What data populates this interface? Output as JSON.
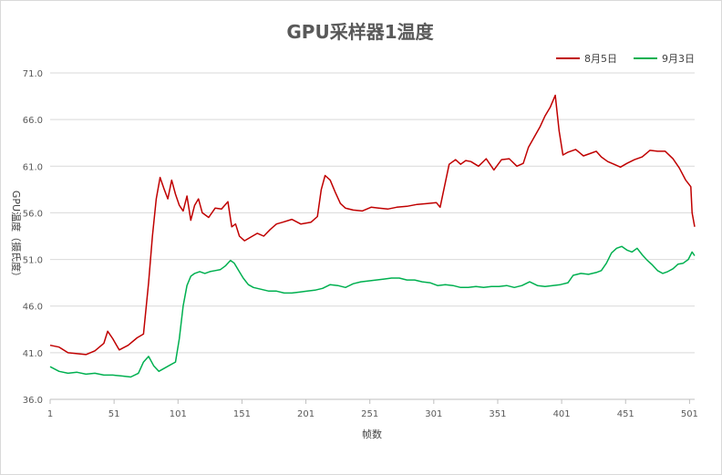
{
  "chart_data": {
    "type": "line",
    "title": "GPU采样器1温度",
    "xlabel": "帧数",
    "ylabel": "GPU温度（摄氏度）",
    "xlim": [
      1,
      505
    ],
    "ylim": [
      36.0,
      71.0
    ],
    "x_ticks": [
      1,
      51,
      101,
      151,
      201,
      251,
      301,
      351,
      401,
      451,
      501
    ],
    "y_ticks": [
      "36.0",
      "41.0",
      "46.0",
      "51.0",
      "56.0",
      "61.0",
      "66.0",
      "71.0"
    ],
    "grid": "horizontal",
    "legend_position": "top-right",
    "series": [
      {
        "name": "8月5日",
        "color": "#c00000",
        "points": [
          [
            1,
            41.8
          ],
          [
            8,
            41.6
          ],
          [
            15,
            41.0
          ],
          [
            22,
            40.9
          ],
          [
            29,
            40.8
          ],
          [
            36,
            41.2
          ],
          [
            43,
            42.0
          ],
          [
            46,
            43.3
          ],
          [
            50,
            42.5
          ],
          [
            55,
            41.3
          ],
          [
            62,
            41.8
          ],
          [
            69,
            42.6
          ],
          [
            74,
            43.0
          ],
          [
            78,
            48.5
          ],
          [
            81,
            53.5
          ],
          [
            84,
            57.5
          ],
          [
            87,
            59.8
          ],
          [
            90,
            58.6
          ],
          [
            93,
            57.5
          ],
          [
            96,
            59.5
          ],
          [
            99,
            58.0
          ],
          [
            102,
            56.8
          ],
          [
            105,
            56.2
          ],
          [
            108,
            57.8
          ],
          [
            111,
            55.2
          ],
          [
            114,
            56.8
          ],
          [
            117,
            57.5
          ],
          [
            120,
            56.0
          ],
          [
            125,
            55.5
          ],
          [
            130,
            56.5
          ],
          [
            135,
            56.4
          ],
          [
            140,
            57.2
          ],
          [
            143,
            54.5
          ],
          [
            146,
            54.8
          ],
          [
            149,
            53.5
          ],
          [
            153,
            53.0
          ],
          [
            158,
            53.4
          ],
          [
            163,
            53.8
          ],
          [
            168,
            53.5
          ],
          [
            173,
            54.2
          ],
          [
            178,
            54.8
          ],
          [
            183,
            55.0
          ],
          [
            190,
            55.3
          ],
          [
            197,
            54.8
          ],
          [
            205,
            55.0
          ],
          [
            210,
            55.6
          ],
          [
            213,
            58.5
          ],
          [
            216,
            60.0
          ],
          [
            220,
            59.5
          ],
          [
            224,
            58.2
          ],
          [
            228,
            57.0
          ],
          [
            232,
            56.5
          ],
          [
            238,
            56.3
          ],
          [
            245,
            56.2
          ],
          [
            252,
            56.6
          ],
          [
            258,
            56.5
          ],
          [
            265,
            56.4
          ],
          [
            272,
            56.6
          ],
          [
            280,
            56.7
          ],
          [
            288,
            56.9
          ],
          [
            296,
            57.0
          ],
          [
            303,
            57.1
          ],
          [
            306,
            56.6
          ],
          [
            309,
            58.6
          ],
          [
            313,
            61.2
          ],
          [
            318,
            61.7
          ],
          [
            322,
            61.2
          ],
          [
            326,
            61.6
          ],
          [
            330,
            61.5
          ],
          [
            336,
            61.0
          ],
          [
            342,
            61.8
          ],
          [
            348,
            60.6
          ],
          [
            354,
            61.7
          ],
          [
            360,
            61.8
          ],
          [
            366,
            61.0
          ],
          [
            371,
            61.3
          ],
          [
            375,
            63.0
          ],
          [
            379,
            64.0
          ],
          [
            384,
            65.2
          ],
          [
            388,
            66.4
          ],
          [
            392,
            67.3
          ],
          [
            396,
            68.6
          ],
          [
            399,
            64.8
          ],
          [
            402,
            62.2
          ],
          [
            406,
            62.5
          ],
          [
            412,
            62.8
          ],
          [
            418,
            62.1
          ],
          [
            424,
            62.4
          ],
          [
            428,
            62.6
          ],
          [
            432,
            62.0
          ],
          [
            437,
            61.5
          ],
          [
            442,
            61.2
          ],
          [
            447,
            60.9
          ],
          [
            452,
            61.3
          ],
          [
            458,
            61.7
          ],
          [
            464,
            62.0
          ],
          [
            470,
            62.7
          ],
          [
            476,
            62.6
          ],
          [
            482,
            62.6
          ],
          [
            488,
            61.8
          ],
          [
            493,
            60.8
          ],
          [
            498,
            59.5
          ],
          [
            502,
            58.8
          ],
          [
            503,
            56.0
          ],
          [
            505,
            54.5
          ]
        ]
      },
      {
        "name": "9月3日",
        "color": "#00b050",
        "points": [
          [
            1,
            39.5
          ],
          [
            8,
            39.0
          ],
          [
            15,
            38.8
          ],
          [
            22,
            38.9
          ],
          [
            29,
            38.7
          ],
          [
            36,
            38.8
          ],
          [
            43,
            38.6
          ],
          [
            50,
            38.6
          ],
          [
            57,
            38.5
          ],
          [
            64,
            38.4
          ],
          [
            70,
            38.8
          ],
          [
            74,
            40.0
          ],
          [
            78,
            40.6
          ],
          [
            82,
            39.6
          ],
          [
            86,
            39.0
          ],
          [
            90,
            39.3
          ],
          [
            95,
            39.7
          ],
          [
            99,
            40.0
          ],
          [
            102,
            42.5
          ],
          [
            105,
            46.0
          ],
          [
            108,
            48.2
          ],
          [
            111,
            49.2
          ],
          [
            114,
            49.5
          ],
          [
            118,
            49.7
          ],
          [
            122,
            49.5
          ],
          [
            126,
            49.7
          ],
          [
            130,
            49.8
          ],
          [
            134,
            49.9
          ],
          [
            138,
            50.3
          ],
          [
            142,
            50.9
          ],
          [
            145,
            50.6
          ],
          [
            148,
            49.9
          ],
          [
            152,
            49.0
          ],
          [
            156,
            48.3
          ],
          [
            160,
            48.0
          ],
          [
            166,
            47.8
          ],
          [
            172,
            47.6
          ],
          [
            178,
            47.6
          ],
          [
            184,
            47.4
          ],
          [
            190,
            47.4
          ],
          [
            196,
            47.5
          ],
          [
            202,
            47.6
          ],
          [
            208,
            47.7
          ],
          [
            214,
            47.9
          ],
          [
            220,
            48.3
          ],
          [
            226,
            48.2
          ],
          [
            232,
            48.0
          ],
          [
            238,
            48.4
          ],
          [
            244,
            48.6
          ],
          [
            250,
            48.7
          ],
          [
            256,
            48.8
          ],
          [
            262,
            48.9
          ],
          [
            268,
            49.0
          ],
          [
            274,
            49.0
          ],
          [
            280,
            48.8
          ],
          [
            286,
            48.8
          ],
          [
            292,
            48.6
          ],
          [
            298,
            48.5
          ],
          [
            304,
            48.2
          ],
          [
            310,
            48.3
          ],
          [
            316,
            48.2
          ],
          [
            322,
            48.0
          ],
          [
            328,
            48.0
          ],
          [
            334,
            48.1
          ],
          [
            340,
            48.0
          ],
          [
            346,
            48.1
          ],
          [
            352,
            48.1
          ],
          [
            358,
            48.2
          ],
          [
            364,
            48.0
          ],
          [
            370,
            48.2
          ],
          [
            376,
            48.6
          ],
          [
            382,
            48.2
          ],
          [
            388,
            48.1
          ],
          [
            394,
            48.2
          ],
          [
            400,
            48.3
          ],
          [
            406,
            48.5
          ],
          [
            410,
            49.3
          ],
          [
            416,
            49.5
          ],
          [
            422,
            49.4
          ],
          [
            428,
            49.6
          ],
          [
            432,
            49.8
          ],
          [
            436,
            50.6
          ],
          [
            440,
            51.7
          ],
          [
            444,
            52.2
          ],
          [
            448,
            52.4
          ],
          [
            452,
            52.0
          ],
          [
            456,
            51.8
          ],
          [
            460,
            52.2
          ],
          [
            464,
            51.5
          ],
          [
            468,
            50.9
          ],
          [
            472,
            50.4
          ],
          [
            476,
            49.8
          ],
          [
            480,
            49.5
          ],
          [
            484,
            49.7
          ],
          [
            488,
            50.0
          ],
          [
            492,
            50.5
          ],
          [
            496,
            50.6
          ],
          [
            500,
            51.0
          ],
          [
            503,
            51.8
          ],
          [
            505,
            51.4
          ]
        ]
      }
    ]
  }
}
